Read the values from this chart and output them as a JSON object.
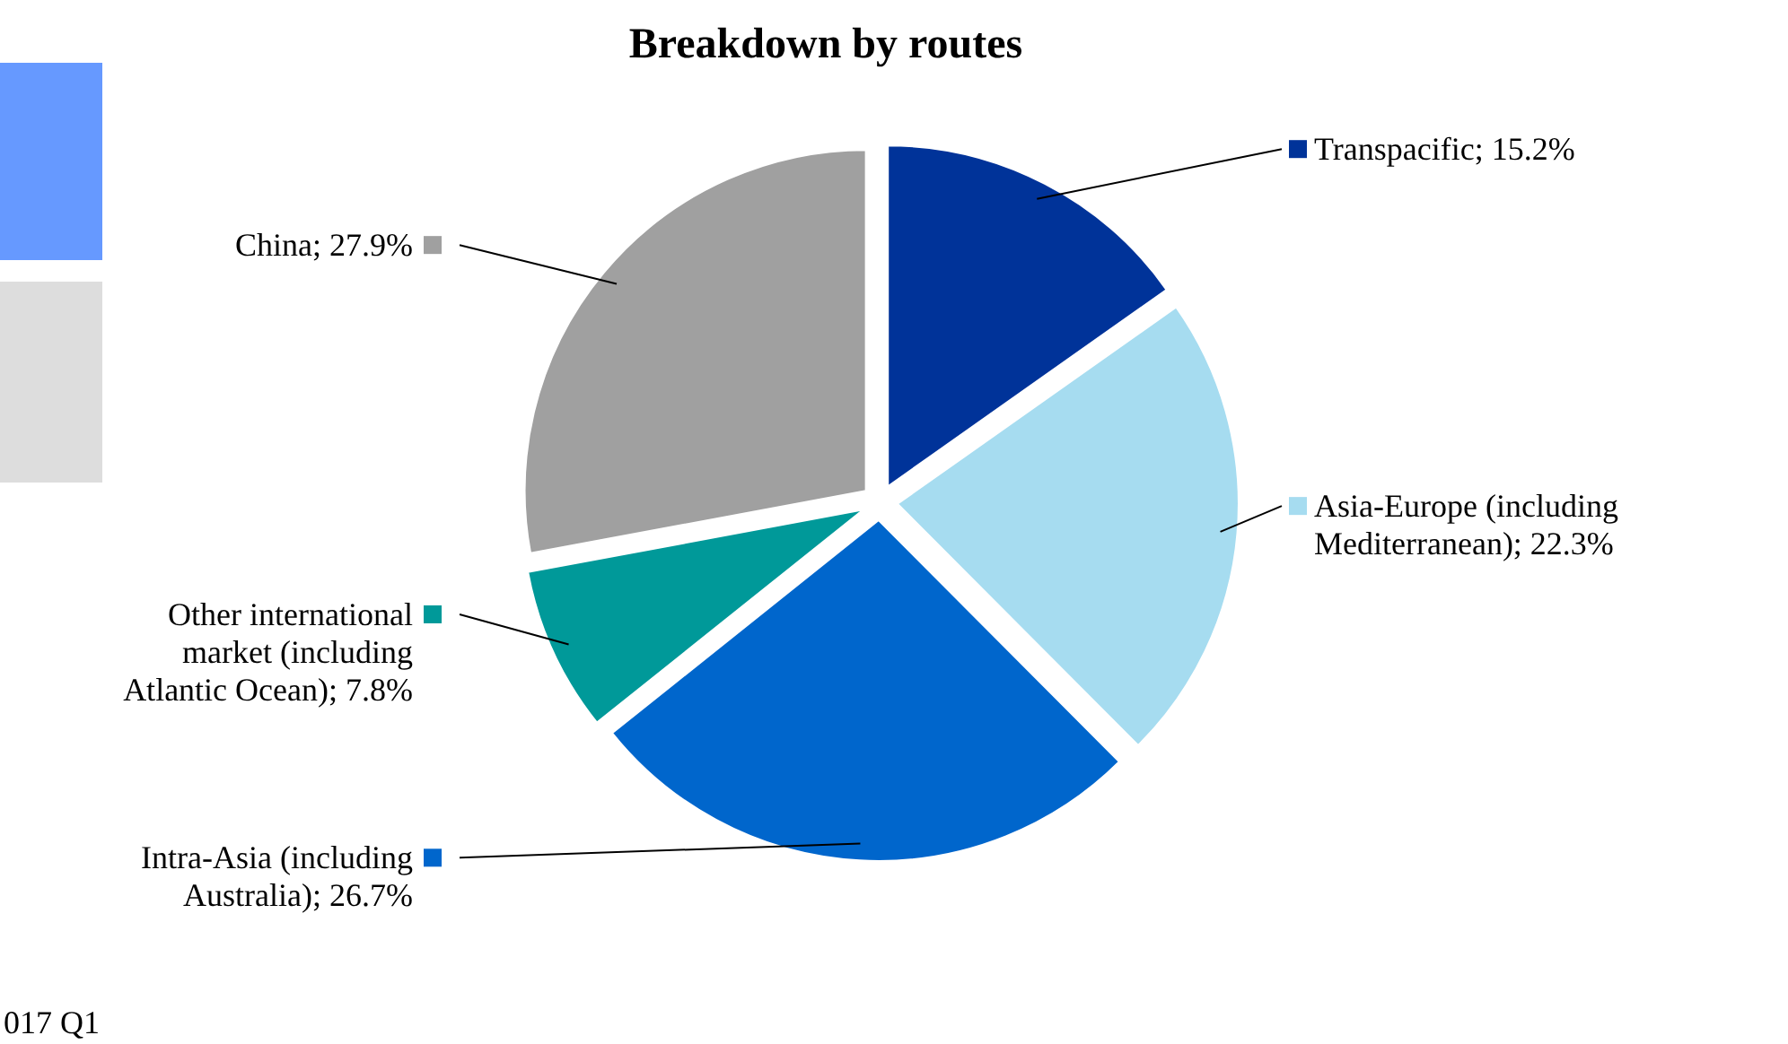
{
  "chart_data": {
    "type": "pie",
    "title": "Breakdown by routes",
    "categories": [
      "Transpacific",
      "Asia-Europe (including Mediterranean)",
      "Intra-Asia (including Australia)",
      "Other international market (including Atlantic Ocean)",
      "China"
    ],
    "values": [
      15.2,
      22.3,
      26.7,
      7.8,
      27.9
    ],
    "value_labels": [
      "15.2%",
      "22.3%",
      "26.7%",
      "7.8%",
      "27.9%"
    ],
    "colors": [
      "#003399",
      "#a6dcf0",
      "#0066cc",
      "#009999",
      "#a0a0a0"
    ],
    "annotations": [
      "017 Q1"
    ],
    "legend": "bottom left"
  }
}
